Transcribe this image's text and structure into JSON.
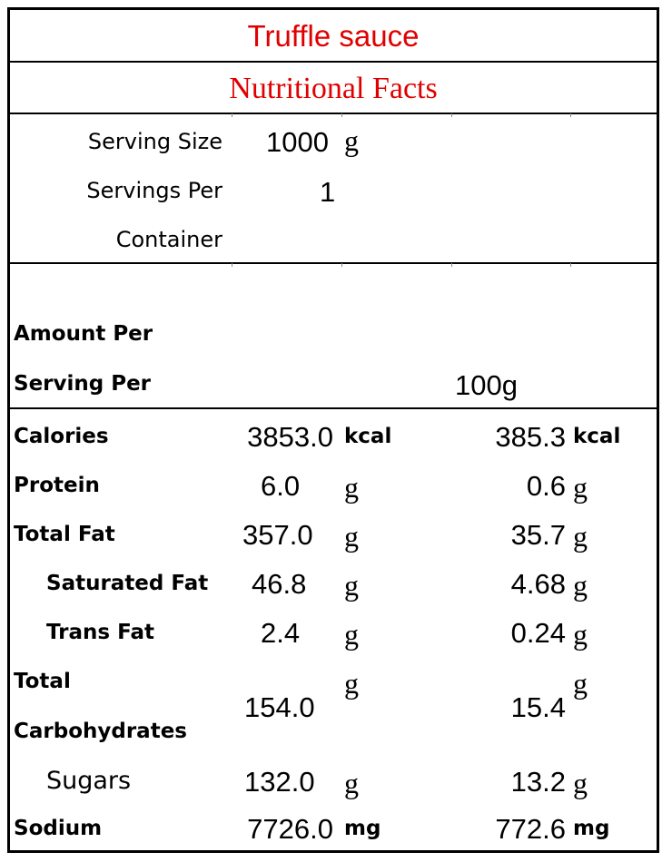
{
  "title": "Truffle sauce",
  "subtitle": "Nutritional Facts",
  "serving": {
    "size_label": "Serving Size",
    "size_value": "1000",
    "size_unit": "g",
    "per_container_label_1": "Servings Per",
    "per_container_label_2": "Container",
    "per_container_value": "1"
  },
  "amount_header": {
    "line1": "Amount Per",
    "line2": "Serving Per",
    "per_100": "100g"
  },
  "nutrients": [
    {
      "label": "Calories",
      "total": "3853.0",
      "total_unit": "kcal",
      "per100": "385.3",
      "per100_unit": "kcal"
    },
    {
      "label": "Protein",
      "total": "6.0",
      "total_unit": "g",
      "per100": "0.6",
      "per100_unit": "g"
    },
    {
      "label": "Total Fat",
      "total": "357.0",
      "total_unit": "g",
      "per100": "35.7",
      "per100_unit": "g"
    },
    {
      "label": "Saturated Fat",
      "total": "46.8",
      "total_unit": "g",
      "per100": "4.68",
      "per100_unit": "g"
    },
    {
      "label": "Trans Fat",
      "total": "2.4",
      "total_unit": "g",
      "per100": "0.24",
      "per100_unit": "g"
    },
    {
      "label_1": "Total",
      "label_2": "Carbohydrates",
      "total": "154.0",
      "total_unit": "g",
      "per100": "15.4",
      "per100_unit": "g"
    },
    {
      "label": "Sugars",
      "total": "132.0",
      "total_unit": "g",
      "per100": "13.2",
      "per100_unit": "g"
    },
    {
      "label": "Sodium",
      "total": "7726.0",
      "total_unit": "mg",
      "per100": "772.6",
      "per100_unit": "mg"
    }
  ]
}
